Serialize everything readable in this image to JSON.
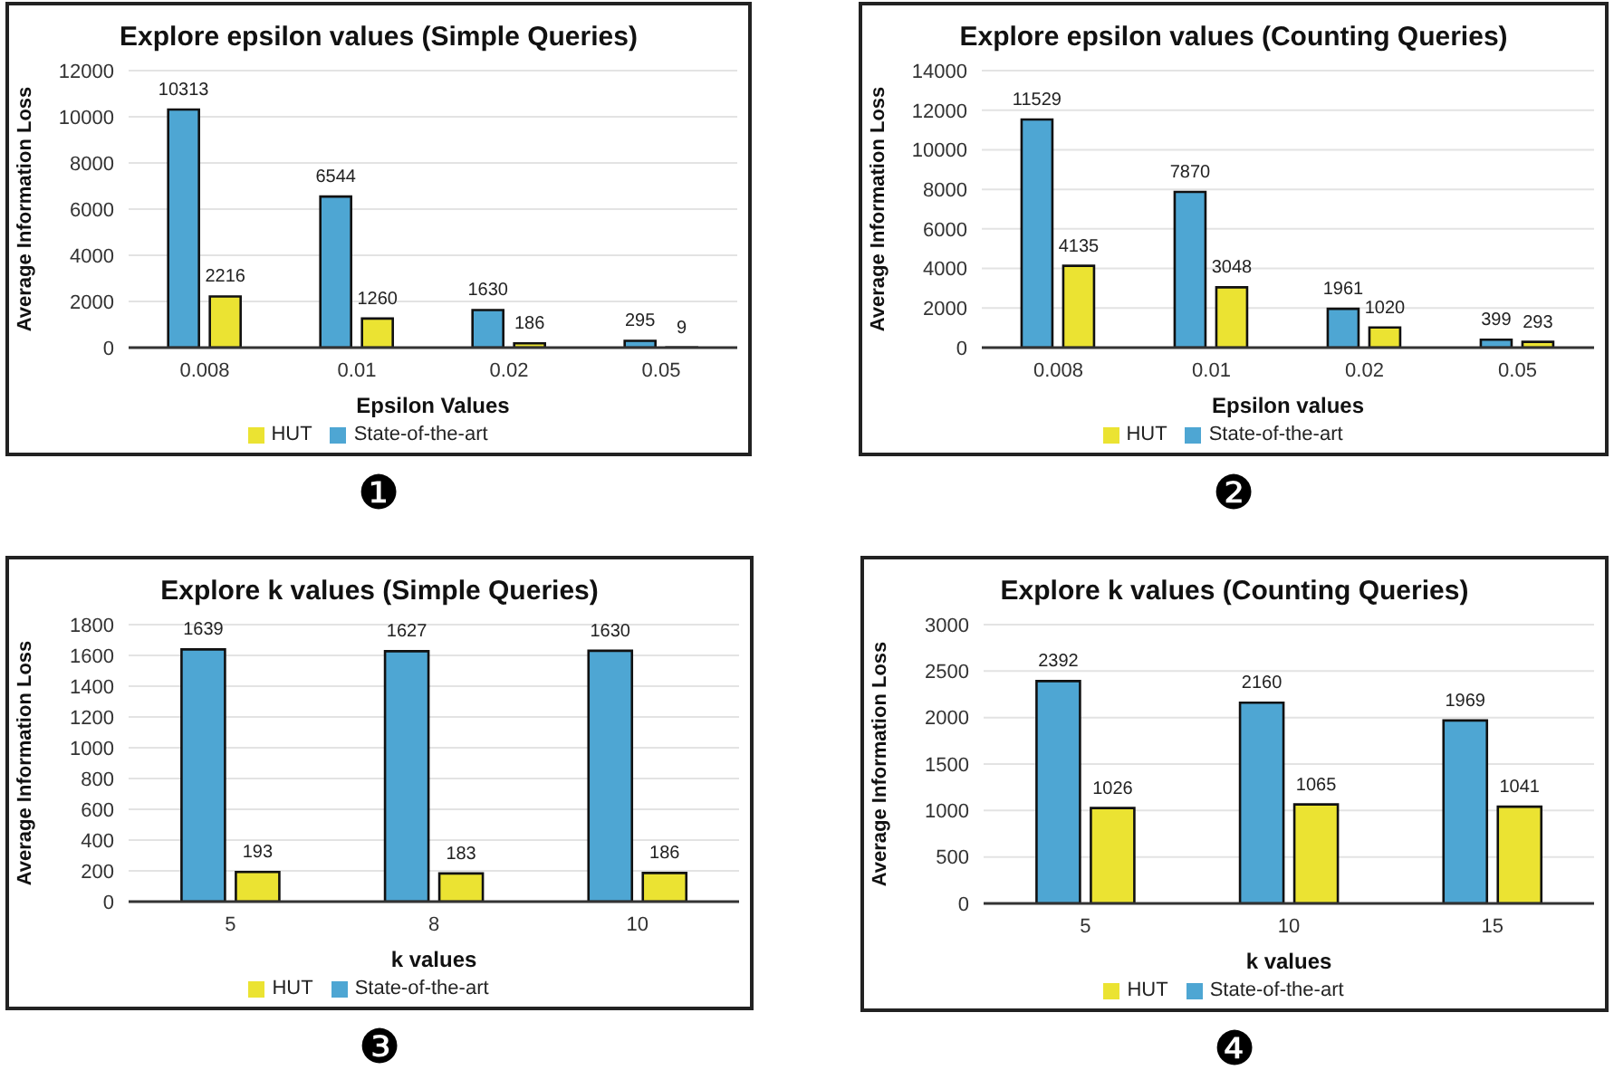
{
  "chart_data": [
    {
      "type": "bar",
      "title": "Explore epsilon values (Simple Queries)",
      "xlabel": "Epsilon Values",
      "ylabel": "Average Information Loss",
      "categories": [
        "0.008",
        "0.01",
        "0.02",
        "0.05"
      ],
      "series": [
        {
          "name": "State-of-the-art",
          "color": "#4ea6d3",
          "values": [
            10313,
            6544,
            1630,
            295
          ]
        },
        {
          "name": "HUT",
          "color": "#ebe332",
          "values": [
            2216,
            1260,
            186,
            9
          ]
        }
      ],
      "ylim": [
        0,
        12000
      ],
      "yticks": [
        0,
        2000,
        4000,
        6000,
        8000,
        10000,
        12000
      ],
      "grid": "y",
      "legend": "bottom",
      "data_labels": true,
      "annotations": [
        "❶"
      ]
    },
    {
      "type": "bar",
      "title": "Explore epsilon values (Counting Queries)",
      "xlabel": "Epsilon values",
      "ylabel": "Average Information Loss",
      "categories": [
        "0.008",
        "0.01",
        "0.02",
        "0.05"
      ],
      "series": [
        {
          "name": "State-of-the-art",
          "color": "#4ea6d3",
          "values": [
            11529,
            7870,
            1961,
            399
          ]
        },
        {
          "name": "HUT",
          "color": "#ebe332",
          "values": [
            4135,
            3048,
            1020,
            293
          ]
        }
      ],
      "ylim": [
        0,
        14000
      ],
      "yticks": [
        0,
        2000,
        4000,
        6000,
        8000,
        10000,
        12000,
        14000
      ],
      "grid": "y",
      "legend": "bottom",
      "data_labels": true,
      "annotations": [
        "❷"
      ]
    },
    {
      "type": "bar",
      "title": "Explore k values (Simple Queries)",
      "xlabel": "k values",
      "ylabel": "Average Information Loss",
      "categories": [
        "5",
        "8",
        "10"
      ],
      "series": [
        {
          "name": "State-of-the-art",
          "color": "#4ea6d3",
          "values": [
            1639,
            1627,
            1630
          ]
        },
        {
          "name": "HUT",
          "color": "#ebe332",
          "values": [
            193,
            183,
            186
          ]
        }
      ],
      "ylim": [
        0,
        1800
      ],
      "yticks": [
        0,
        200,
        400,
        600,
        800,
        1000,
        1200,
        1400,
        1600,
        1800
      ],
      "grid": "y",
      "legend": "bottom",
      "data_labels": true,
      "annotations": [
        "❸"
      ]
    },
    {
      "type": "bar",
      "title": "Explore k values (Counting Queries)",
      "xlabel": "k values",
      "ylabel": "Average Information Loss",
      "categories": [
        "5",
        "10",
        "15"
      ],
      "series": [
        {
          "name": "State-of-the-art",
          "color": "#4ea6d3",
          "values": [
            2392,
            2160,
            1969
          ]
        },
        {
          "name": "HUT",
          "color": "#ebe332",
          "values": [
            1026,
            1065,
            1041
          ]
        }
      ],
      "ylim": [
        0,
        3000
      ],
      "yticks": [
        0,
        500,
        1000,
        1500,
        2000,
        2500,
        3000
      ],
      "grid": "y",
      "legend": "bottom",
      "data_labels": true,
      "annotations": [
        "❹"
      ]
    }
  ]
}
